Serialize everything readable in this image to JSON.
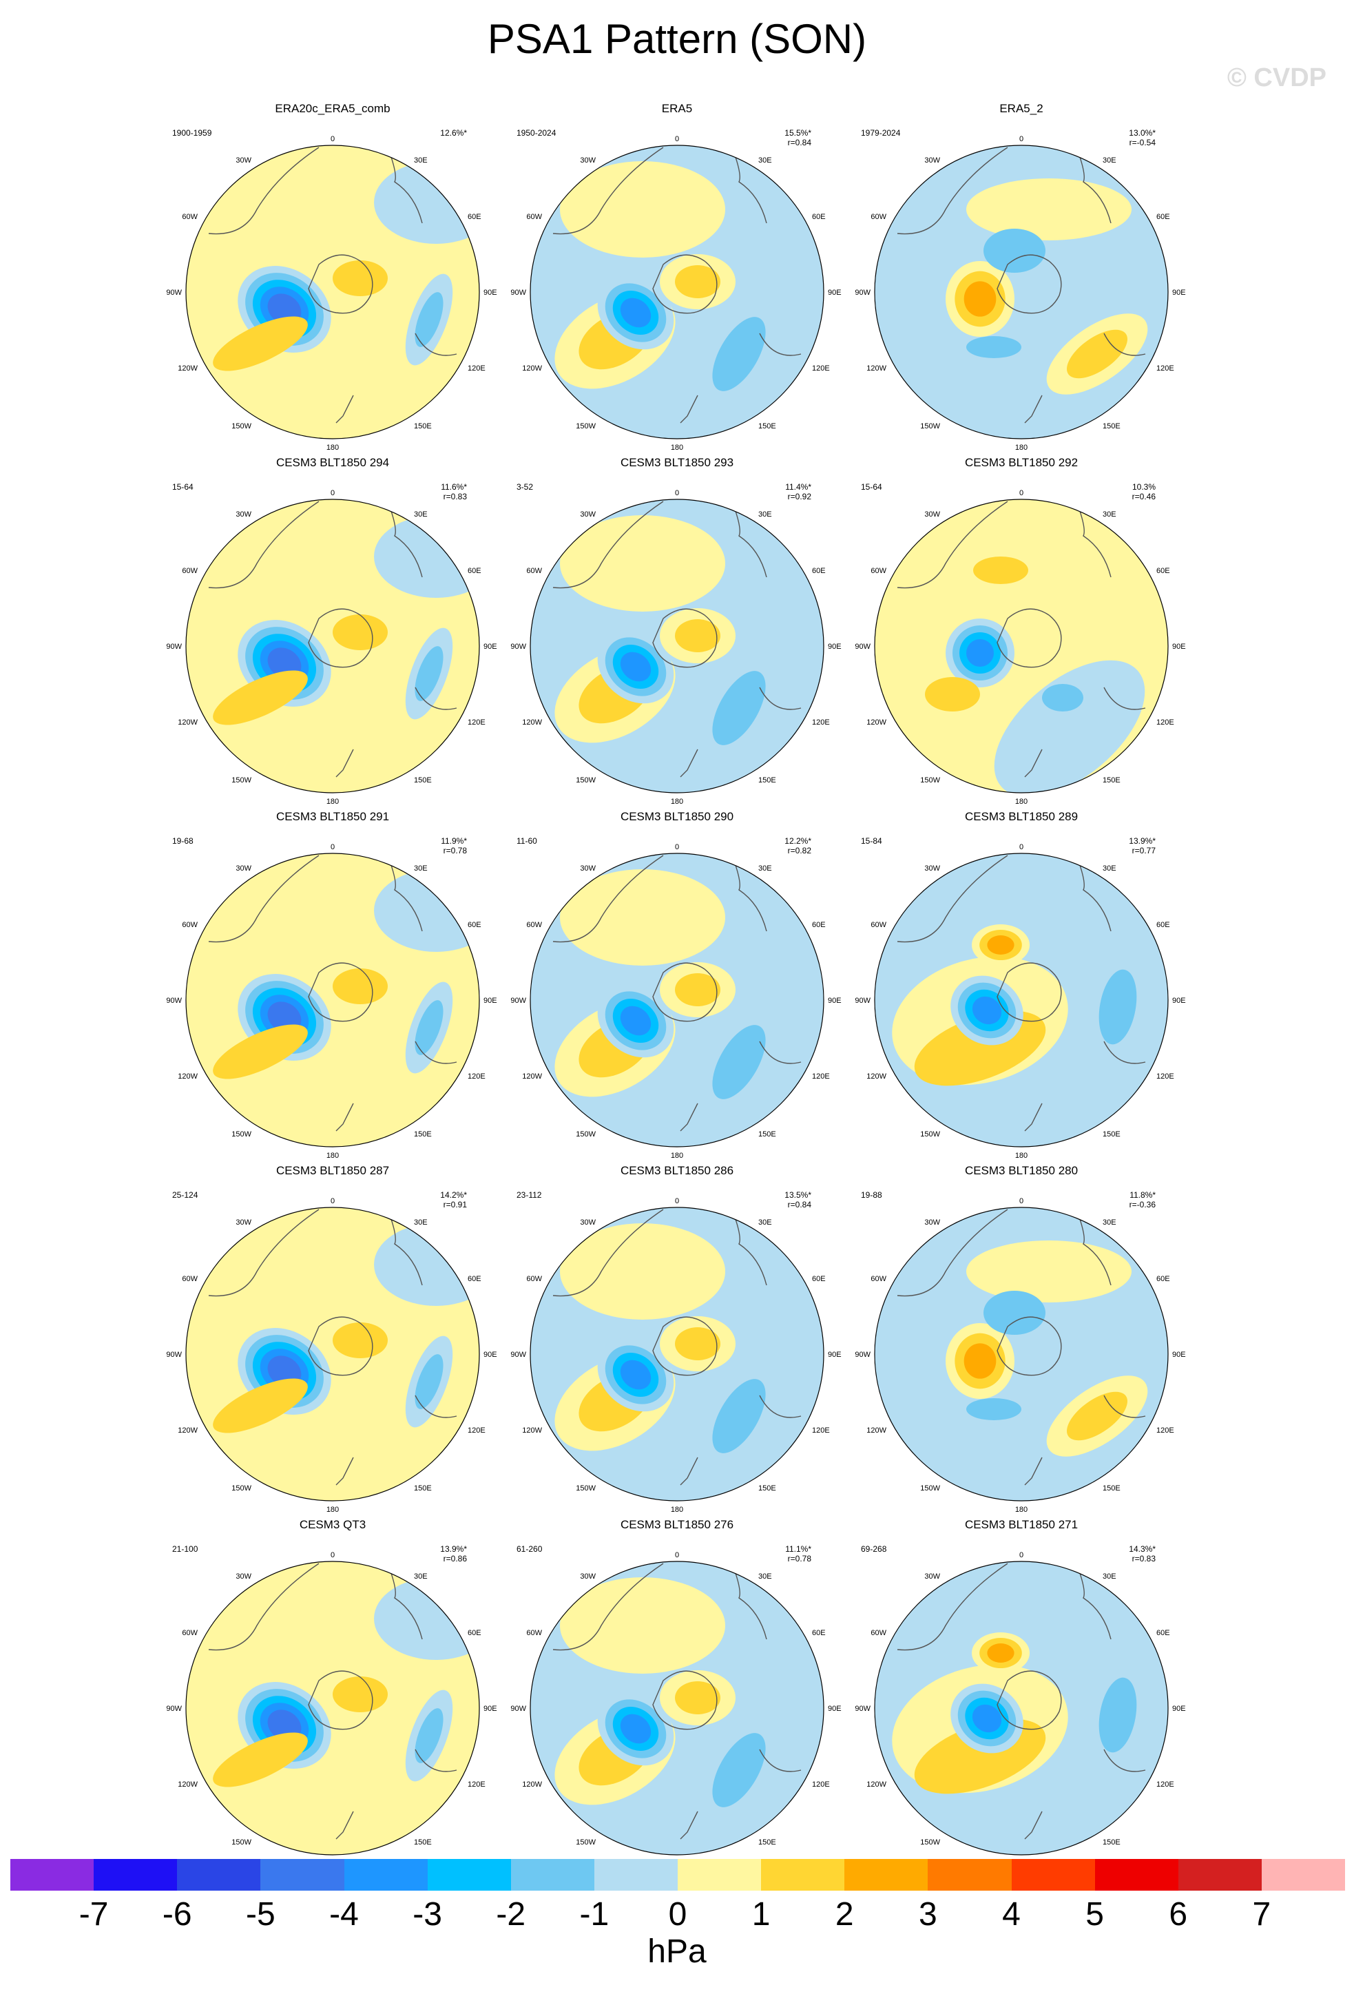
{
  "title": "PSA1 Pattern (SON)",
  "watermark": "© CVDP",
  "colors": {
    "land_outline": "#555555",
    "boundary": "#000000"
  },
  "colorbar": {
    "colors": [
      "#8a2be2",
      "#1e10f5",
      "#2a45e6",
      "#3a78ee",
      "#1e96ff",
      "#00c0ff",
      "#6ec8f2",
      "#b4ddf2",
      "#fff7a0",
      "#ffd633",
      "#ffaa00",
      "#ff7a00",
      "#ff3c00",
      "#ee0000",
      "#d42020",
      "#ffb4b4"
    ],
    "labels": [
      "-7",
      "-6",
      "-5",
      "-4",
      "-3",
      "-2",
      "-1",
      "0",
      "1",
      "2",
      "3",
      "4",
      "5",
      "6",
      "7"
    ],
    "unit": "hPa"
  },
  "map_labels": {
    "lon_top": "0",
    "lon_bottom": "180",
    "left": [
      "30W",
      "60W",
      "90W",
      "120W",
      "150W"
    ],
    "right": [
      "30E",
      "60E",
      "90E",
      "120E",
      "150E"
    ]
  },
  "panels": [
    {
      "title": "ERA20c_ERA5_comb",
      "range": "1900-1959",
      "pct": "12.6%*",
      "r": "",
      "pattern": "a"
    },
    {
      "title": "ERA5",
      "range": "1950-2024",
      "pct": "15.5%*",
      "r": "r=0.84",
      "pattern": "b"
    },
    {
      "title": "ERA5_2",
      "range": "1979-2024",
      "pct": "13.0%*",
      "r": "r=-0.54",
      "pattern": "c"
    },
    {
      "title": "CESM3 BLT1850 294",
      "range": "15-64",
      "pct": "11.6%*",
      "r": "r=0.83",
      "pattern": "a"
    },
    {
      "title": "CESM3 BLT1850 293",
      "range": "3-52",
      "pct": "11.4%*",
      "r": "r=0.92",
      "pattern": "b"
    },
    {
      "title": "CESM3 BLT1850 292",
      "range": "15-64",
      "pct": "10.3%",
      "r": "r=0.46",
      "pattern": "d"
    },
    {
      "title": "CESM3 BLT1850 291",
      "range": "19-68",
      "pct": "11.9%*",
      "r": "r=0.78",
      "pattern": "a"
    },
    {
      "title": "CESM3 BLT1850 290",
      "range": "11-60",
      "pct": "12.2%*",
      "r": "r=0.82",
      "pattern": "b"
    },
    {
      "title": "CESM3 BLT1850 289",
      "range": "15-84",
      "pct": "13.9%*",
      "r": "r=0.77",
      "pattern": "e"
    },
    {
      "title": "CESM3 BLT1850 287",
      "range": "25-124",
      "pct": "14.2%*",
      "r": "r=0.91",
      "pattern": "a"
    },
    {
      "title": "CESM3 BLT1850 286",
      "range": "23-112",
      "pct": "13.5%*",
      "r": "r=0.84",
      "pattern": "b"
    },
    {
      "title": "CESM3 BLT1850 280",
      "range": "19-88",
      "pct": "11.8%*",
      "r": "r=-0.36",
      "pattern": "c"
    },
    {
      "title": "CESM3 QT3",
      "range": "21-100",
      "pct": "13.9%*",
      "r": "r=0.86",
      "pattern": "a"
    },
    {
      "title": "CESM3 BLT1850 276",
      "range": "61-260",
      "pct": "11.1%*",
      "r": "r=0.78",
      "pattern": "b"
    },
    {
      "title": "CESM3 BLT1850 271",
      "range": "69-268",
      "pct": "14.3%*",
      "r": "r=0.83",
      "pattern": "e"
    }
  ]
}
